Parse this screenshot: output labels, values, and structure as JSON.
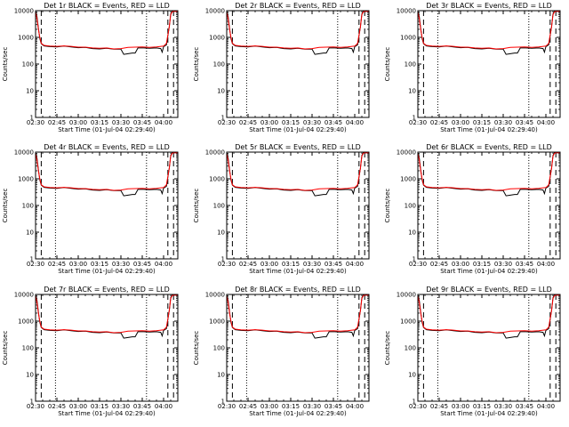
{
  "chart_data": [
    {
      "type": "line",
      "title": "Det 1r BLACK = Events, RED = LLD"
    },
    {
      "type": "line",
      "title": "Det 2r BLACK = Events, RED = LLD"
    },
    {
      "type": "line",
      "title": "Det 3r BLACK = Events, RED = LLD"
    },
    {
      "type": "line",
      "title": "Det 4r BLACK = Events, RED = LLD"
    },
    {
      "type": "line",
      "title": "Det 5r BLACK = Events, RED = LLD"
    },
    {
      "type": "line",
      "title": "Det 6r BLACK = Events, RED = LLD"
    },
    {
      "type": "line",
      "title": "Det 7r BLACK = Events, RED = LLD"
    },
    {
      "type": "line",
      "title": "Det 8r BLACK = Events, RED = LLD"
    },
    {
      "type": "line",
      "title": "Det 9r BLACK = Events, RED = LLD"
    }
  ],
  "shared": {
    "xlabel": "Start Time (01-Jul-04 02:29:40)",
    "ylabel": "Counts/sec",
    "y_scale": "log",
    "ylim": [
      1,
      10000
    ],
    "y_ticks": [
      {
        "value": 1,
        "label": "1"
      },
      {
        "value": 10,
        "label": "10"
      },
      {
        "value": 100,
        "label": "100"
      },
      {
        "value": 1000,
        "label": "1000"
      },
      {
        "value": 10000,
        "label": "10000"
      }
    ],
    "xlim_minutes": [
      0,
      100
    ],
    "x_ticks": [
      {
        "minute": 0,
        "label": "02:30"
      },
      {
        "minute": 15,
        "label": "02:45"
      },
      {
        "minute": 30,
        "label": "03:00"
      },
      {
        "minute": 45,
        "label": "03:15"
      },
      {
        "minute": 60,
        "label": "03:30"
      },
      {
        "minute": 75,
        "label": "03:45"
      },
      {
        "minute": 90,
        "label": "04:00"
      }
    ],
    "events_color": "#000000",
    "lld_color": "#ff0000",
    "dotted_lines_minutes": [
      14,
      78
    ],
    "dashed_lines_minutes": [
      4,
      93,
      97
    ],
    "events_series": [
      [
        0,
        9500
      ],
      [
        1,
        6000
      ],
      [
        2,
        2200
      ],
      [
        3,
        900
      ],
      [
        4,
        580
      ],
      [
        6,
        480
      ],
      [
        10,
        450
      ],
      [
        15,
        440
      ],
      [
        20,
        470
      ],
      [
        25,
        440
      ],
      [
        30,
        410
      ],
      [
        35,
        420
      ],
      [
        40,
        380
      ],
      [
        45,
        370
      ],
      [
        50,
        390
      ],
      [
        55,
        360
      ],
      [
        60,
        360
      ],
      [
        62,
        230
      ],
      [
        64,
        240
      ],
      [
        66,
        250
      ],
      [
        68,
        260
      ],
      [
        70,
        260
      ],
      [
        71,
        320
      ],
      [
        72,
        400
      ],
      [
        76,
        400
      ],
      [
        80,
        390
      ],
      [
        85,
        400
      ],
      [
        88,
        380
      ],
      [
        89,
        280
      ],
      [
        90,
        450
      ],
      [
        92,
        520
      ],
      [
        94,
        2500
      ],
      [
        95,
        7500
      ],
      [
        96,
        9500
      ],
      [
        97,
        9500
      ],
      [
        100,
        9500
      ]
    ],
    "lld_series": [
      [
        0,
        9000
      ],
      [
        1,
        5000
      ],
      [
        2,
        2000
      ],
      [
        3,
        1000
      ],
      [
        4,
        600
      ],
      [
        6,
        500
      ],
      [
        10,
        470
      ],
      [
        15,
        460
      ],
      [
        20,
        480
      ],
      [
        25,
        460
      ],
      [
        30,
        430
      ],
      [
        35,
        430
      ],
      [
        40,
        400
      ],
      [
        45,
        390
      ],
      [
        50,
        400
      ],
      [
        55,
        370
      ],
      [
        60,
        380
      ],
      [
        65,
        420
      ],
      [
        70,
        430
      ],
      [
        75,
        440
      ],
      [
        80,
        420
      ],
      [
        85,
        440
      ],
      [
        90,
        470
      ],
      [
        92,
        600
      ],
      [
        94,
        2500
      ],
      [
        95,
        7000
      ],
      [
        96,
        9000
      ],
      [
        97,
        9500
      ],
      [
        100,
        9500
      ]
    ]
  }
}
